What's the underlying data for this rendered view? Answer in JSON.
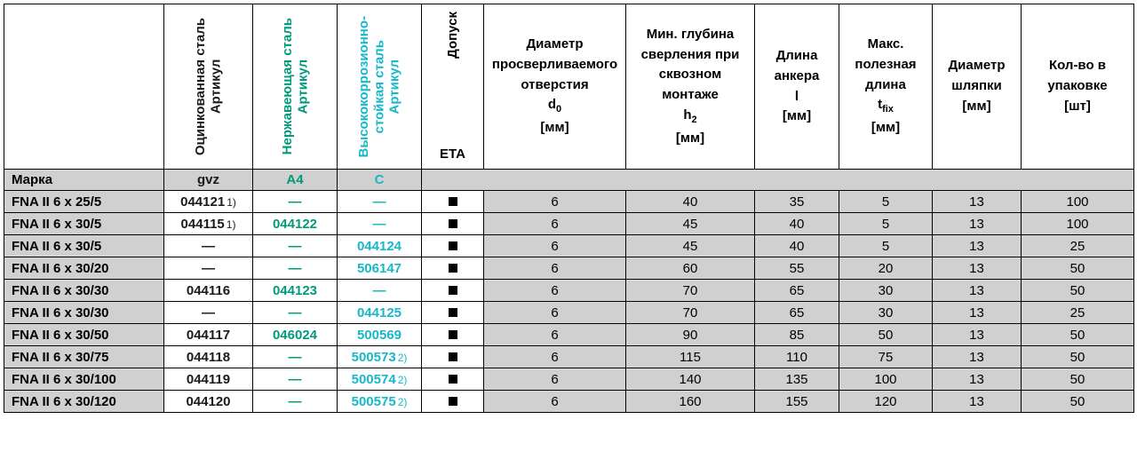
{
  "headers": {
    "gvz_label": "Оцинкованная сталь",
    "gvz_sub": "Артикул",
    "a4_label": "Нержавеющая сталь",
    "a4_sub": "Артикул",
    "c_label1": "Высококоррозионно-",
    "c_label2": "стойкая сталь",
    "c_sub": "Артикул",
    "eta_label": "Допуск",
    "eta_sub": "ETA",
    "d0_l1": "Диаметр",
    "d0_l2": "просверливаемого",
    "d0_l3": "отверстия",
    "d0_sym": "d",
    "d0_sub": "0",
    "d0_unit": "[мм]",
    "h2_l1": "Мин. глубина",
    "h2_l2": "сверления при",
    "h2_l3": "сквозном",
    "h2_l4": "монтаже",
    "h2_sym": "h",
    "h2_sub": "2",
    "h2_unit": "[мм]",
    "l_l1": "Длина",
    "l_l2": "анкера",
    "l_sym": "l",
    "l_unit": "[мм]",
    "t_l1": "Макс.",
    "t_l2": "полезная",
    "t_l3": "длина",
    "t_sym": "t",
    "t_sub": "fix",
    "t_unit": "[мм]",
    "dh_l1": "Диаметр",
    "dh_l2": "шляпки",
    "dh_unit": "[мм]",
    "pk_l1": "Кол-во в",
    "pk_l2": "упаковке",
    "pk_unit": "[шт]"
  },
  "marka": {
    "label": "Марка",
    "gvz": "gvz",
    "a4": "A4",
    "c": "C"
  },
  "colors": {
    "gvz": "#1a1a1a",
    "a4": "#009a7b",
    "c": "#16b8c9",
    "shade": "#d0d0d0"
  },
  "rows": [
    {
      "name": "FNA II 6 x 25/5",
      "gvz": "044121",
      "gvz_note": "1)",
      "a4": "—",
      "c": "—",
      "d0": "6",
      "h2": "40",
      "l": "35",
      "t": "5",
      "dh": "13",
      "pk": "100"
    },
    {
      "name": "FNA II 6 x 30/5",
      "gvz": "044115",
      "gvz_note": "1)",
      "a4": "044122",
      "c": "—",
      "d0": "6",
      "h2": "45",
      "l": "40",
      "t": "5",
      "dh": "13",
      "pk": "100"
    },
    {
      "name": "FNA II 6 x 30/5",
      "gvz": "—",
      "a4": "—",
      "c": "044124",
      "d0": "6",
      "h2": "45",
      "l": "40",
      "t": "5",
      "dh": "13",
      "pk": "25"
    },
    {
      "name": "FNA II 6 x 30/20",
      "gvz": "—",
      "a4": "—",
      "c": "506147",
      "d0": "6",
      "h2": "60",
      "l": "55",
      "t": "20",
      "dh": "13",
      "pk": "50"
    },
    {
      "name": "FNA II 6 x 30/30",
      "gvz": "044116",
      "a4": "044123",
      "c": "—",
      "d0": "6",
      "h2": "70",
      "l": "65",
      "t": "30",
      "dh": "13",
      "pk": "50"
    },
    {
      "name": "FNA II 6 x 30/30",
      "gvz": "—",
      "a4": "—",
      "c": "044125",
      "d0": "6",
      "h2": "70",
      "l": "65",
      "t": "30",
      "dh": "13",
      "pk": "25"
    },
    {
      "name": "FNA II 6 x 30/50",
      "gvz": "044117",
      "a4": "046024",
      "c": "500569",
      "d0": "6",
      "h2": "90",
      "l": "85",
      "t": "50",
      "dh": "13",
      "pk": "50"
    },
    {
      "name": "FNA II 6 x 30/75",
      "gvz": "044118",
      "a4": "—",
      "c": "500573",
      "c_note": "2)",
      "d0": "6",
      "h2": "115",
      "l": "110",
      "t": "75",
      "dh": "13",
      "pk": "50"
    },
    {
      "name": "FNA II 6 x 30/100",
      "gvz": "044119",
      "a4": "—",
      "c": "500574",
      "c_note": "2)",
      "d0": "6",
      "h2": "140",
      "l": "135",
      "t": "100",
      "dh": "13",
      "pk": "50"
    },
    {
      "name": "FNA II 6 x 30/120",
      "gvz": "044120",
      "a4": "—",
      "c": "500575",
      "c_note": "2)",
      "d0": "6",
      "h2": "160",
      "l": "155",
      "t": "120",
      "dh": "13",
      "pk": "50"
    }
  ]
}
